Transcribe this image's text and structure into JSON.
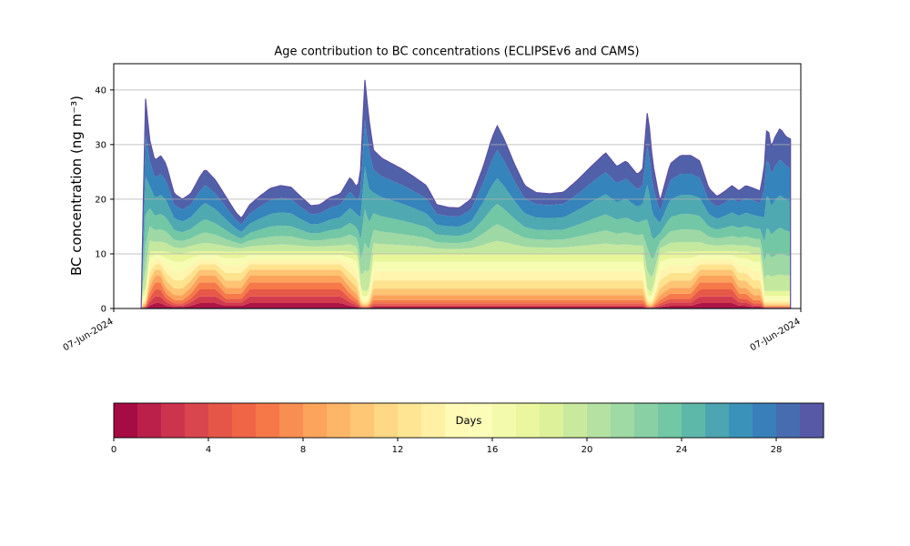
{
  "chart_data": {
    "type": "area",
    "subtype": "stacked-age-spectrum",
    "title": "Age contribution to BC concentrations (ECLIPSEv6 and CAMS)",
    "ylabel": "BC concentration (ng m⁻³)",
    "xlabel": "",
    "x_tick_labels": [
      "07-Jun-2024",
      "07-Jun-2024"
    ],
    "x_tick_positions": [
      0,
      1
    ],
    "y_ticks": [
      0,
      10,
      20,
      30,
      40
    ],
    "ylim": [
      0,
      44.8
    ],
    "xlim": [
      0,
      1
    ],
    "grid": true,
    "legend": "none",
    "edge_color": "#5e4fa2",
    "colormap_name": "Spectral",
    "colormap_stops": [
      "#9e0142",
      "#d53e4f",
      "#f46d43",
      "#fdae61",
      "#fee08b",
      "#ffffbf",
      "#e6f598",
      "#abdda4",
      "#66c2a5",
      "#3288bd",
      "#5e4fa2"
    ],
    "colorbar": {
      "label": "Days",
      "ticks": [
        0,
        4,
        8,
        12,
        16,
        20,
        24,
        28
      ],
      "range": [
        0,
        30
      ],
      "segments": 30,
      "orientation": "horizontal"
    },
    "num_bands": 16,
    "age_range_days": [
      0,
      30
    ],
    "data_start_x": 0.04,
    "data_end_x": 0.985,
    "profiles": {
      "normal": [
        0.25,
        0.3,
        0.4,
        0.6,
        0.9,
        1.2,
        1.5,
        1.7,
        1.7,
        1.5
      ],
      "midfresh": [
        0.5,
        0.6,
        0.7,
        0.9,
        1.1,
        1.3,
        1.4,
        1.4,
        1.3,
        1.2
      ],
      "fresh": [
        1.0,
        1.2,
        1.3,
        1.3,
        1.2,
        1.1,
        1.0,
        0.9,
        0.8,
        0.7
      ],
      "aged": [
        0.05,
        0.07,
        0.1,
        0.12,
        0.18,
        0.25,
        0.35,
        0.5,
        0.7,
        0.9
      ]
    },
    "upper_weights": [
      0.1,
      0.13,
      0.16,
      0.2,
      0.22,
      0.19
    ],
    "keyframes": [
      [
        0.04,
        0.5,
        "aged"
      ],
      [
        0.046,
        38.8,
        "aged"
      ],
      [
        0.052,
        31.0,
        "midfresh"
      ],
      [
        0.06,
        27.0,
        "fresh"
      ],
      [
        0.068,
        28.0,
        "fresh"
      ],
      [
        0.076,
        26.5,
        "midfresh"
      ],
      [
        0.088,
        21.0,
        "normal"
      ],
      [
        0.1,
        20.0,
        "normal"
      ],
      [
        0.112,
        21.0,
        "midfresh"
      ],
      [
        0.125,
        24.0,
        "fresh"
      ],
      [
        0.133,
        25.5,
        "fresh"
      ],
      [
        0.148,
        23.5,
        "fresh"
      ],
      [
        0.163,
        20.5,
        "midfresh"
      ],
      [
        0.178,
        17.5,
        "midfresh"
      ],
      [
        0.186,
        16.5,
        "midfresh"
      ],
      [
        0.198,
        19.0,
        "fresh"
      ],
      [
        0.212,
        20.5,
        "fresh"
      ],
      [
        0.228,
        22.0,
        "fresh"
      ],
      [
        0.243,
        22.5,
        "fresh"
      ],
      [
        0.258,
        22.2,
        "fresh"
      ],
      [
        0.272,
        20.5,
        "fresh"
      ],
      [
        0.287,
        18.8,
        "fresh"
      ],
      [
        0.3,
        19.0,
        "fresh"
      ],
      [
        0.315,
        20.3,
        "fresh"
      ],
      [
        0.33,
        21.0,
        "fresh"
      ],
      [
        0.344,
        24.0,
        "midfresh"
      ],
      [
        0.355,
        22.0,
        "normal"
      ],
      [
        0.36,
        26.0,
        "aged"
      ],
      [
        0.365,
        42.5,
        "aged"
      ],
      [
        0.371,
        35.0,
        "aged"
      ],
      [
        0.378,
        29.0,
        "normal"
      ],
      [
        0.39,
        27.5,
        "normal"
      ],
      [
        0.405,
        26.5,
        "normal"
      ],
      [
        0.42,
        25.5,
        "normal"
      ],
      [
        0.438,
        24.0,
        "normal"
      ],
      [
        0.455,
        22.5,
        "normal"
      ],
      [
        0.47,
        19.0,
        "normal"
      ],
      [
        0.487,
        18.5,
        "normal"
      ],
      [
        0.503,
        18.4,
        "normal"
      ],
      [
        0.52,
        20.0,
        "normal"
      ],
      [
        0.538,
        26.0,
        "normal"
      ],
      [
        0.55,
        31.0,
        "normal"
      ],
      [
        0.558,
        33.5,
        "normal"
      ],
      [
        0.568,
        31.0,
        "normal"
      ],
      [
        0.583,
        26.5,
        "normal"
      ],
      [
        0.598,
        22.5,
        "normal"
      ],
      [
        0.615,
        21.2,
        "normal"
      ],
      [
        0.635,
        21.0,
        "normal"
      ],
      [
        0.655,
        21.3,
        "normal"
      ],
      [
        0.675,
        23.5,
        "normal"
      ],
      [
        0.695,
        26.0,
        "normal"
      ],
      [
        0.716,
        28.5,
        "normal"
      ],
      [
        0.732,
        26.0,
        "normal"
      ],
      [
        0.746,
        27.0,
        "normal"
      ],
      [
        0.762,
        24.5,
        "normal"
      ],
      [
        0.77,
        25.5,
        "normal"
      ],
      [
        0.777,
        36.7,
        "aged"
      ],
      [
        0.784,
        27.0,
        "aged"
      ],
      [
        0.795,
        19.5,
        "normal"
      ],
      [
        0.81,
        26.5,
        "midfresh"
      ],
      [
        0.825,
        28.0,
        "midfresh"
      ],
      [
        0.84,
        28.0,
        "midfresh"
      ],
      [
        0.853,
        27.0,
        "fresh"
      ],
      [
        0.866,
        22.0,
        "fresh"
      ],
      [
        0.878,
        20.5,
        "fresh"
      ],
      [
        0.89,
        21.5,
        "fresh"
      ],
      [
        0.9,
        22.5,
        "fresh"
      ],
      [
        0.91,
        21.5,
        "midfresh"
      ],
      [
        0.92,
        22.5,
        "midfresh"
      ],
      [
        0.931,
        22.0,
        "normal"
      ],
      [
        0.941,
        21.5,
        "normal"
      ],
      [
        0.947,
        26.0,
        "aged"
      ],
      [
        0.951,
        34.0,
        "aged"
      ],
      [
        0.957,
        29.5,
        "aged"
      ],
      [
        0.963,
        31.5,
        "aged"
      ],
      [
        0.97,
        33.0,
        "aged"
      ],
      [
        0.978,
        31.5,
        "aged"
      ],
      [
        0.985,
        31.0,
        "aged"
      ]
    ]
  }
}
